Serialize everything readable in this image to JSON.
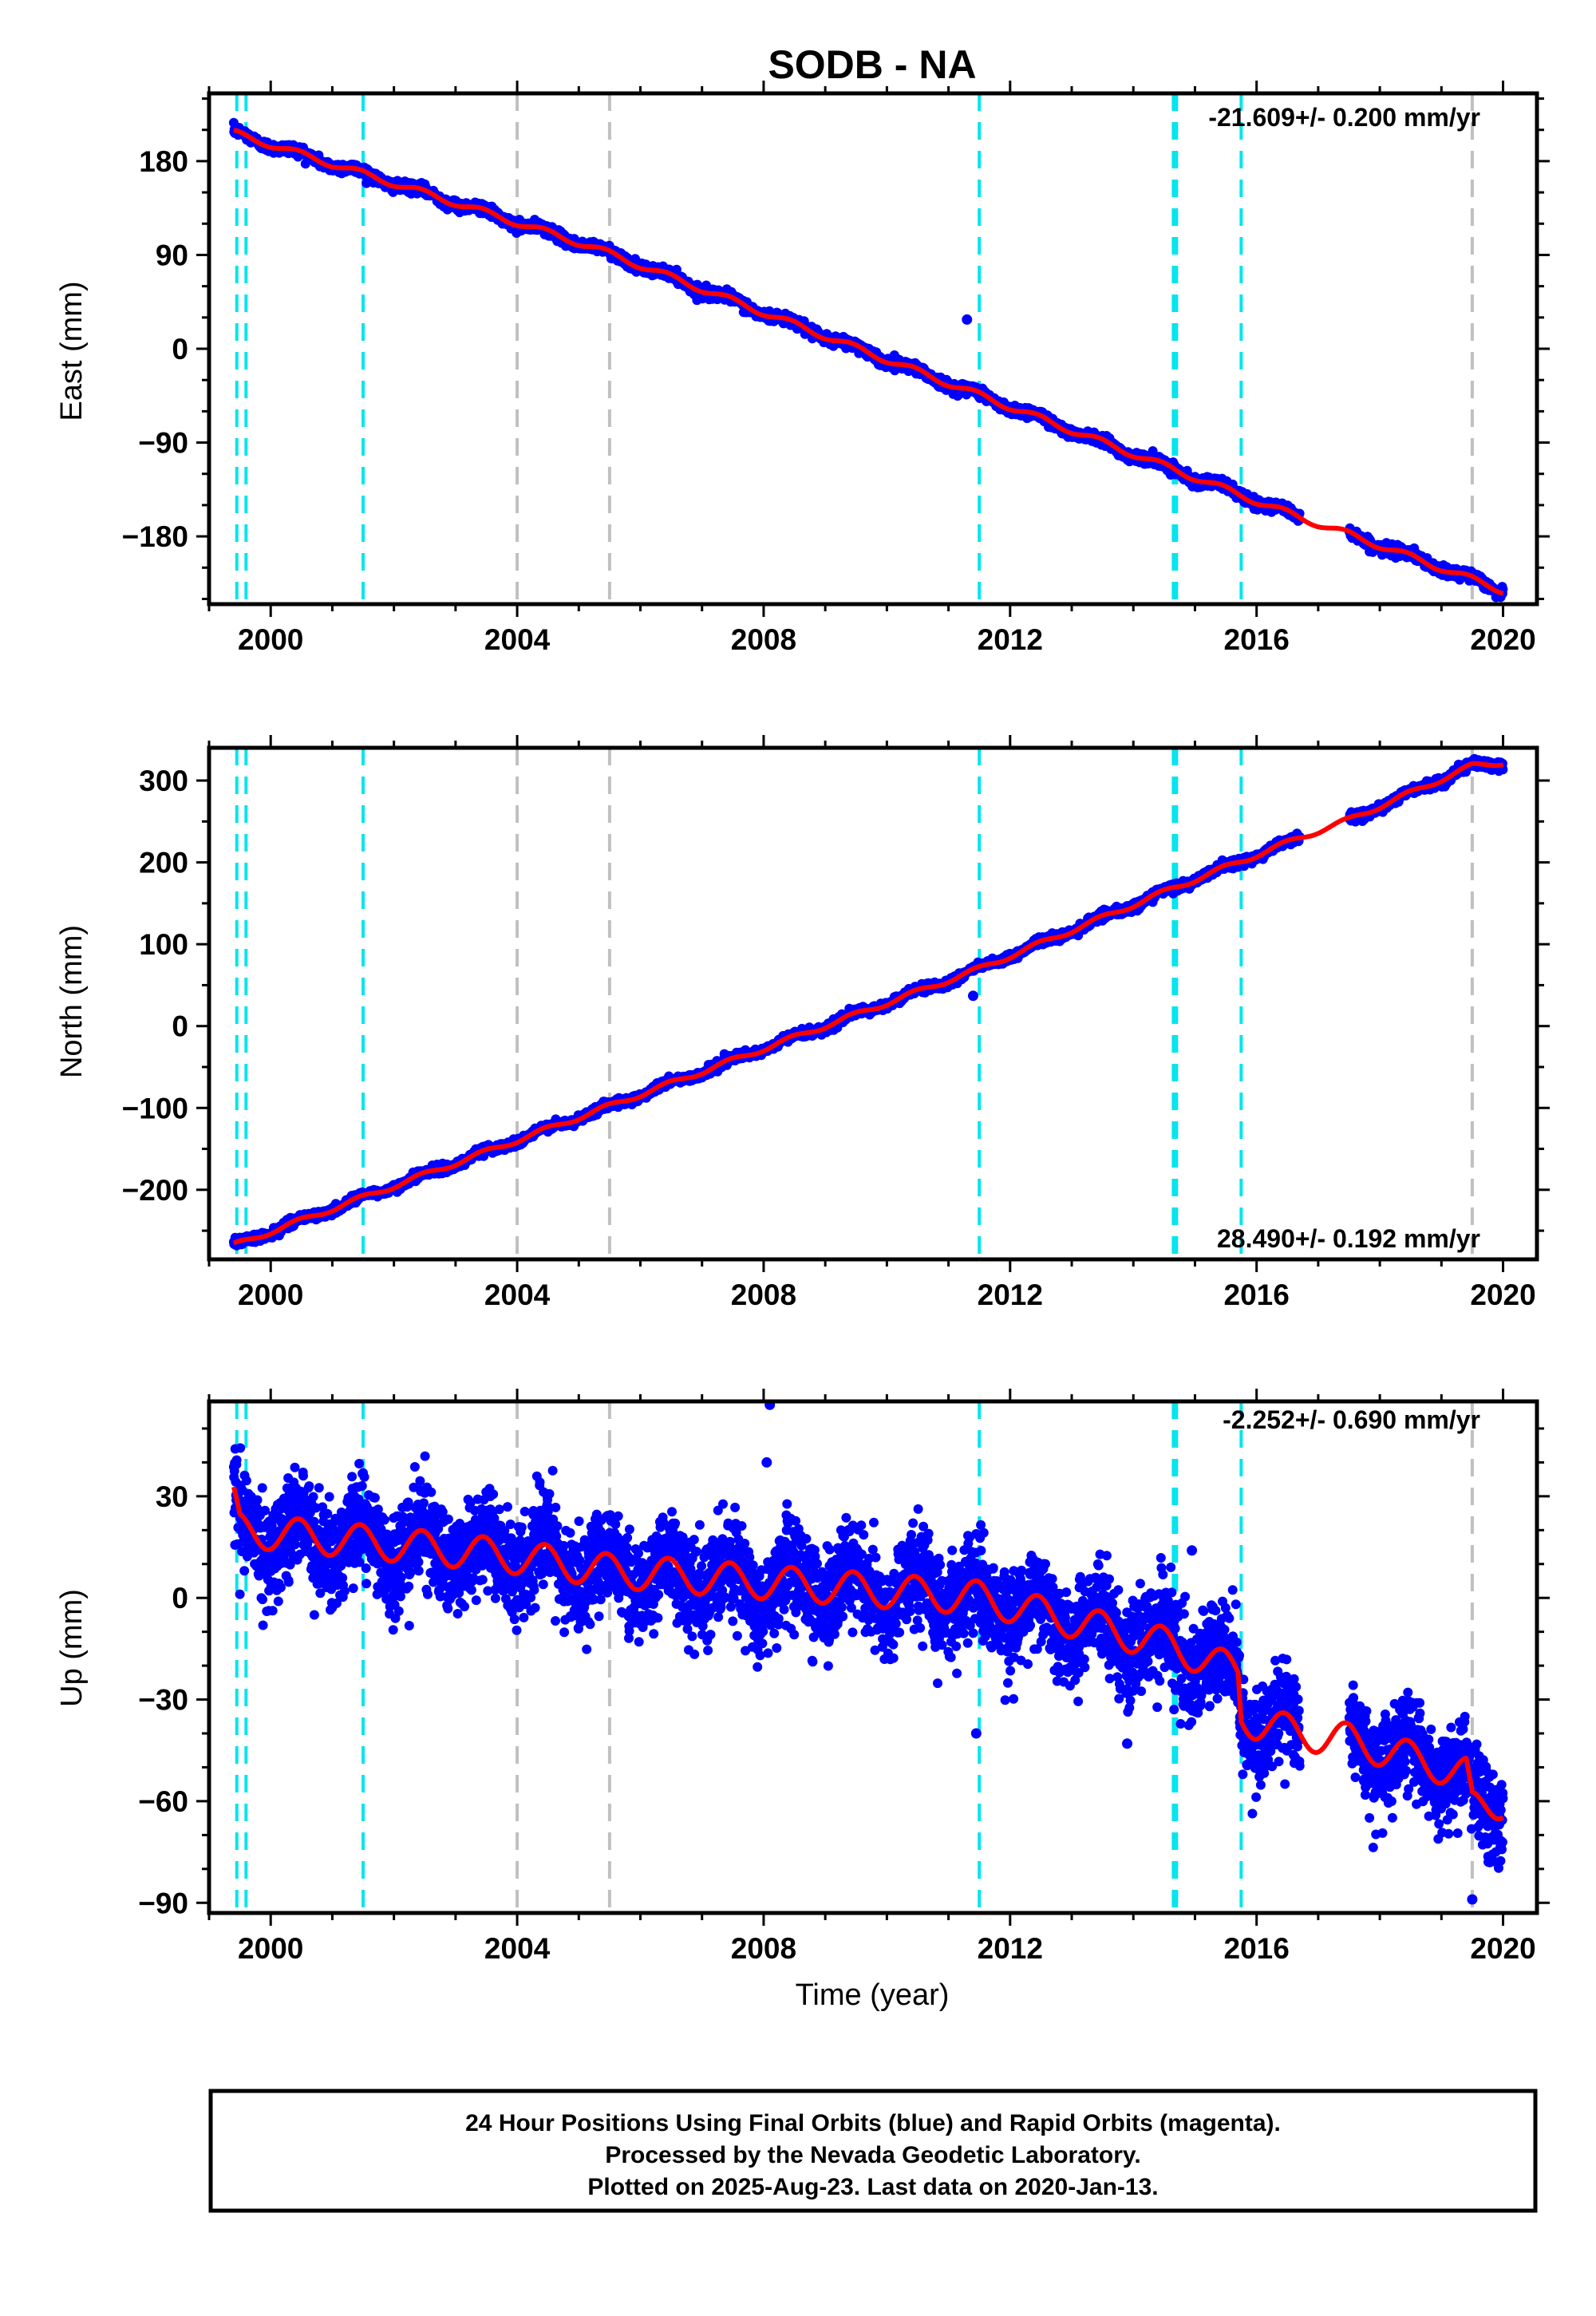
{
  "title": "SODB - NA",
  "colors": {
    "points": "#0000ff",
    "model": "#ff0000",
    "equipment_change": "#00e5ee",
    "earthquake": "#c0c0c0",
    "frame": "#000000"
  },
  "chart_data": [
    {
      "type": "scatter",
      "name": "east-panel",
      "title": "",
      "xlabel": "",
      "ylabel": "East (mm)",
      "xlim": [
        1999.0,
        2020.55
      ],
      "ylim": [
        -245,
        245
      ],
      "xticks": [
        2000,
        2004,
        2008,
        2012,
        2016,
        2020
      ],
      "yticks": [
        -180,
        -90,
        0,
        90,
        180
      ],
      "x_minor_step": 1,
      "y_minor_step": 30,
      "rate_label": "-21.609+/- 0.200 mm/yr",
      "rate_position": "top-right",
      "series": [
        {
          "name": "",
          "style": "points",
          "start": [
            1999.4,
            207
          ],
          "end": [
            2020.0,
            -232
          ],
          "noise": 2.5,
          "seasonal": 3,
          "gap": [
            2016.7,
            2017.5
          ],
          "outliers": [
            [
              2011.3,
              28
            ]
          ]
        },
        {
          "name": "",
          "style": "model",
          "x": [
            1999.4,
            2003.0,
            2005.2,
            2016.7,
            2017.5,
            2020.0
          ],
          "y": [
            207,
            140,
            98,
            -162,
            -178,
            -232
          ],
          "seasonal": 3
        }
      ],
      "vlines": [
        {
          "x": 1999.45,
          "kind": "equipment_change"
        },
        {
          "x": 1999.6,
          "kind": "equipment_change"
        },
        {
          "x": 2001.5,
          "kind": "equipment_change"
        },
        {
          "x": 2004.0,
          "kind": "earthquake"
        },
        {
          "x": 2005.5,
          "kind": "earthquake"
        },
        {
          "x": 2011.5,
          "kind": "equipment_change"
        },
        {
          "x": 2014.65,
          "kind": "equipment_change"
        },
        {
          "x": 2014.7,
          "kind": "equipment_change"
        },
        {
          "x": 2015.75,
          "kind": "equipment_change"
        },
        {
          "x": 2019.5,
          "kind": "earthquake"
        }
      ]
    },
    {
      "type": "scatter",
      "name": "north-panel",
      "title": "",
      "xlabel": "",
      "ylabel": "North (mm)",
      "xlim": [
        1999.0,
        2020.55
      ],
      "ylim": [
        -285,
        340
      ],
      "xticks": [
        2000,
        2004,
        2008,
        2012,
        2016,
        2020
      ],
      "yticks": [
        -200,
        -100,
        0,
        100,
        200,
        300
      ],
      "x_minor_step": 1,
      "y_minor_step": 50,
      "rate_label": "28.490+/- 0.192 mm/yr",
      "rate_position": "bottom-right",
      "series": [
        {
          "name": "",
          "style": "points",
          "start": [
            1999.4,
            -268
          ],
          "end": [
            2020.0,
            322
          ],
          "noise": 2.5,
          "seasonal": 3,
          "gap": [
            2016.7,
            2017.5
          ],
          "outliers": [
            [
              2011.4,
              37
            ]
          ]
        },
        {
          "name": "",
          "style": "model",
          "x": [
            1999.4,
            2011.5,
            2014.7,
            2016.7,
            2017.5,
            2019.5,
            2020.0
          ],
          "y": [
            -268,
            70,
            170,
            230,
            252,
            318,
            322
          ],
          "seasonal": 3
        }
      ],
      "vlines": [
        {
          "x": 1999.45,
          "kind": "equipment_change"
        },
        {
          "x": 1999.6,
          "kind": "equipment_change"
        },
        {
          "x": 2001.5,
          "kind": "equipment_change"
        },
        {
          "x": 2004.0,
          "kind": "earthquake"
        },
        {
          "x": 2005.5,
          "kind": "earthquake"
        },
        {
          "x": 2011.5,
          "kind": "equipment_change"
        },
        {
          "x": 2014.65,
          "kind": "equipment_change"
        },
        {
          "x": 2014.7,
          "kind": "equipment_change"
        },
        {
          "x": 2015.75,
          "kind": "equipment_change"
        },
        {
          "x": 2019.5,
          "kind": "earthquake"
        }
      ]
    },
    {
      "type": "scatter",
      "name": "up-panel",
      "title": "",
      "xlabel": "Time (year)",
      "ylabel": "Up (mm)",
      "xlim": [
        1999.0,
        2020.55
      ],
      "ylim": [
        -93,
        58
      ],
      "xticks": [
        2000,
        2004,
        2008,
        2012,
        2016,
        2020
      ],
      "yticks": [
        -90,
        -60,
        -30,
        0,
        30
      ],
      "x_minor_step": 1,
      "y_minor_step": 10,
      "rate_label": "-2.252+/- 0.690 mm/yr",
      "rate_position": "top-right",
      "series": [
        {
          "name": "",
          "style": "points",
          "start": [
            1999.4,
            32
          ],
          "end": [
            2020.0,
            -60
          ],
          "noise": 7,
          "seasonal": 6,
          "gap": [
            2016.7,
            2017.5
          ],
          "outliers": [
            [
              2008.1,
              57
            ],
            [
              2008.05,
              40
            ],
            [
              2011.45,
              -40
            ],
            [
              2013.9,
              -43
            ],
            [
              2014.95,
              14
            ],
            [
              2019.5,
              -89
            ]
          ]
        },
        {
          "name": "",
          "style": "model",
          "x": [
            1999.4,
            1999.5,
            2003.0,
            2004.0,
            2005.5,
            2011.5,
            2014.6,
            2015.7,
            2015.75,
            2016.0,
            2016.7,
            2017.5,
            2019.4,
            2019.5,
            2020.0
          ],
          "y": [
            28,
            20,
            14,
            12,
            8,
            0,
            -14,
            -22,
            -35,
            -37,
            -40,
            -42,
            -52,
            -62,
            -60
          ],
          "seasonal": 5
        }
      ],
      "vlines": [
        {
          "x": 1999.45,
          "kind": "equipment_change"
        },
        {
          "x": 1999.6,
          "kind": "equipment_change"
        },
        {
          "x": 2001.5,
          "kind": "equipment_change"
        },
        {
          "x": 2004.0,
          "kind": "earthquake"
        },
        {
          "x": 2005.5,
          "kind": "earthquake"
        },
        {
          "x": 2011.5,
          "kind": "equipment_change"
        },
        {
          "x": 2014.65,
          "kind": "equipment_change"
        },
        {
          "x": 2014.7,
          "kind": "equipment_change"
        },
        {
          "x": 2015.75,
          "kind": "equipment_change"
        },
        {
          "x": 2019.5,
          "kind": "earthquake"
        }
      ]
    }
  ],
  "footer": {
    "line1": "24 Hour Positions Using Final Orbits (blue) and Rapid Orbits (magenta).",
    "line2": "Processed by the Nevada Geodetic Laboratory.",
    "line3": "Plotted on 2025-Aug-23. Last data on 2020-Jan-13."
  }
}
